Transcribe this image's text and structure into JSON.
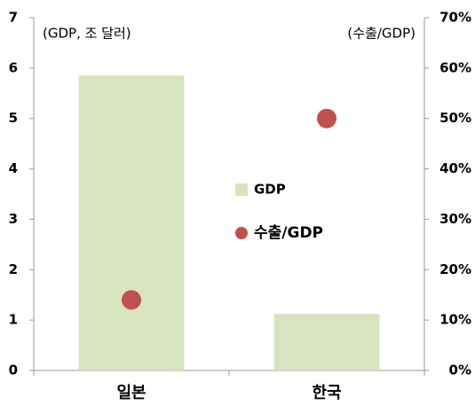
{
  "chart_data": {
    "type": "bar",
    "y_label": "(GDP, 조 달러)",
    "y2_label": "(수출/GDP)",
    "categories": [
      "일본",
      "한국"
    ],
    "series": [
      {
        "name": "GDP",
        "type": "bar",
        "color": "#d7e4bd",
        "values": [
          5.85,
          1.12
        ]
      },
      {
        "name": "수출/GDP",
        "type": "scatter",
        "axis": "y2",
        "color": "#c0504d",
        "values": [
          14,
          50
        ]
      }
    ],
    "ylim": [
      0,
      7
    ],
    "yticks": [
      0,
      1,
      2,
      3,
      4,
      5,
      6,
      7
    ],
    "y2lim": [
      0,
      70
    ],
    "y2ticks": [
      {
        "value": 0,
        "label": "0%"
      },
      {
        "value": 10,
        "label": "10%"
      },
      {
        "value": 20,
        "label": "20%"
      },
      {
        "value": 30,
        "label": "30%"
      },
      {
        "value": 40,
        "label": "40%"
      },
      {
        "value": 50,
        "label": "50%"
      },
      {
        "value": 60,
        "label": "60%"
      },
      {
        "value": 70,
        "label": "70%"
      }
    ],
    "grid": false,
    "legend": "center"
  }
}
